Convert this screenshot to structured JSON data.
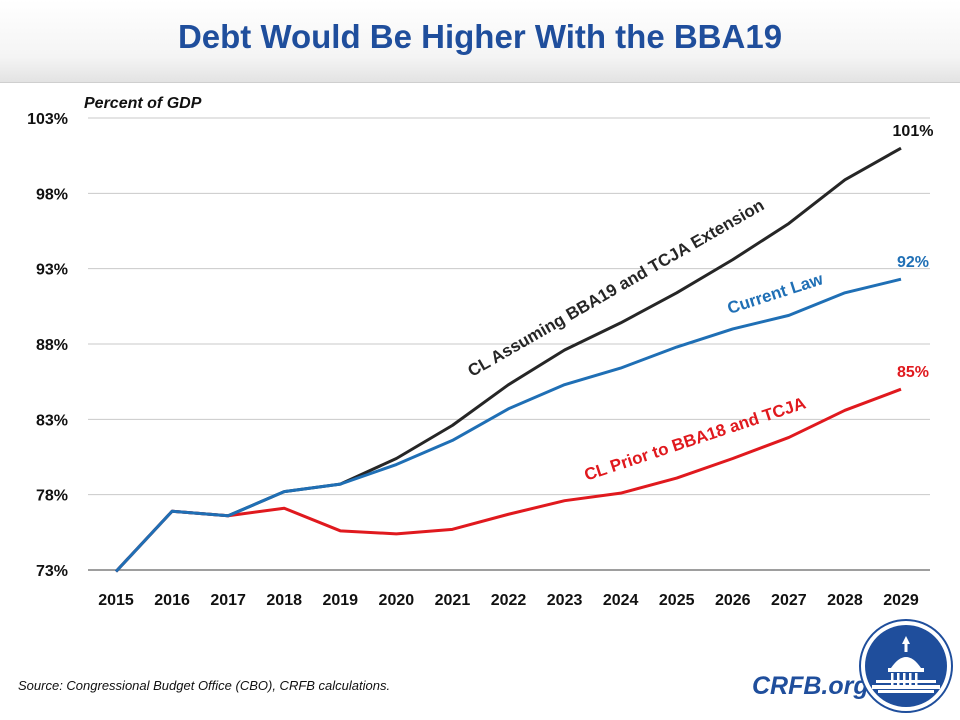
{
  "title": "Debt Would Be Higher With the BBA19",
  "source": "Source: Congressional Budget Office (CBO), CRFB calculations.",
  "brand": "CRFB.org",
  "chart_data": {
    "type": "line",
    "ylabel": "Percent of GDP",
    "x": [
      2015,
      2016,
      2017,
      2018,
      2019,
      2020,
      2021,
      2022,
      2023,
      2024,
      2025,
      2026,
      2027,
      2028,
      2029
    ],
    "ylim": [
      73,
      103
    ],
    "yticks": [
      73,
      78,
      83,
      88,
      93,
      98,
      103
    ],
    "ytick_labels": [
      "73%",
      "78%",
      "83%",
      "88%",
      "93%",
      "98%",
      "103%"
    ],
    "grid": true,
    "series": [
      {
        "name": "CL Assuming BBA19 and TCJA Extension",
        "color": "#262626",
        "values": [
          72.9,
          76.9,
          76.6,
          78.2,
          78.7,
          80.4,
          82.6,
          85.3,
          87.6,
          89.4,
          91.4,
          93.6,
          96.0,
          98.9,
          101.0
        ],
        "end_label": "101%"
      },
      {
        "name": "Current Law",
        "color": "#1f6fb5",
        "values": [
          72.9,
          76.9,
          76.6,
          78.2,
          78.7,
          80.0,
          81.6,
          83.7,
          85.3,
          86.4,
          87.8,
          89.0,
          89.9,
          91.4,
          92.3
        ],
        "end_label": "92%"
      },
      {
        "name": "CL Prior to BBA18 and TCJA",
        "color": "#e0191e",
        "values": [
          72.9,
          76.9,
          76.6,
          77.1,
          75.6,
          75.4,
          75.7,
          76.7,
          77.6,
          78.1,
          79.1,
          80.4,
          81.8,
          83.6,
          85.0
        ],
        "end_label": "85%"
      }
    ]
  }
}
